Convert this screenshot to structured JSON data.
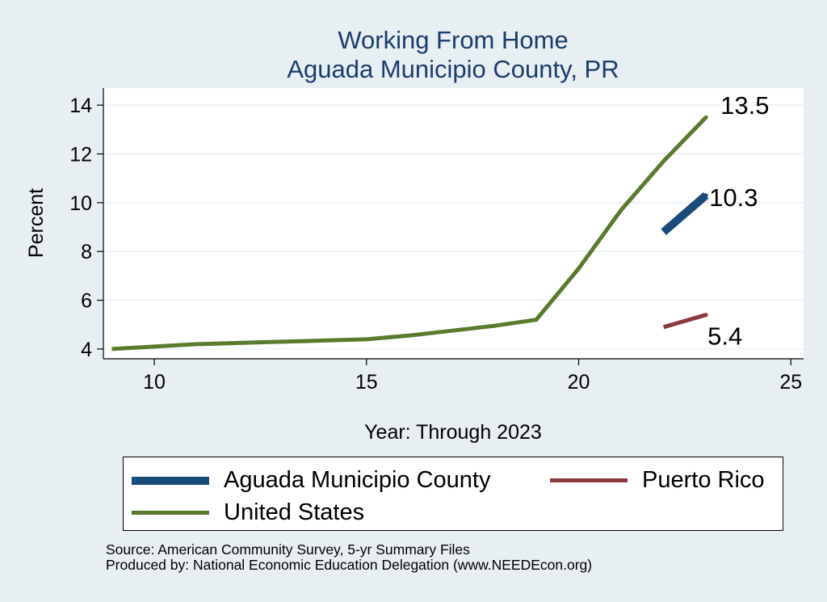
{
  "chart_data": {
    "type": "line",
    "title_lines": [
      "Working From Home",
      "Aguada Municipio County, PR"
    ],
    "xlabel": "Year: Through 2023",
    "ylabel": "Percent",
    "xlim": [
      8.8,
      25.3
    ],
    "ylim": [
      3.6,
      14.7
    ],
    "xticks": [
      10,
      15,
      20,
      25
    ],
    "yticks": [
      4,
      6,
      8,
      10,
      12,
      14
    ],
    "grid": true,
    "legend_position": "bottom",
    "series": [
      {
        "name": "Aguada Municipio County",
        "color": "#1a4a7a",
        "x": [
          22,
          23
        ],
        "y": [
          8.8,
          10.3
        ],
        "end_label": "10.3"
      },
      {
        "name": "Puerto Rico",
        "color": "#8b3a3f",
        "x": [
          22,
          23
        ],
        "y": [
          4.9,
          5.4
        ],
        "end_label": "5.4"
      },
      {
        "name": "United States",
        "color": "#5a7a2e",
        "x": [
          9,
          10,
          11,
          12,
          13,
          14,
          15,
          16,
          17,
          18,
          19,
          20,
          21,
          22,
          23
        ],
        "y": [
          4.0,
          4.1,
          4.2,
          4.25,
          4.3,
          4.35,
          4.4,
          4.55,
          4.75,
          4.95,
          5.2,
          7.3,
          9.7,
          11.7,
          13.5
        ],
        "end_label": "13.5"
      }
    ]
  },
  "legend": {
    "items": [
      {
        "label": "Aguada Municipio County",
        "color": "#1a4a7a"
      },
      {
        "label": "Puerto Rico",
        "color": "#8b3a3f"
      },
      {
        "label": "United States",
        "color": "#5a7a2e"
      }
    ]
  },
  "notes": {
    "source": "Source: American Community Survey, 5-yr Summary Files",
    "produced": "Produced by: National Economic Education Delegation (www.NEEDEcon.org)"
  }
}
